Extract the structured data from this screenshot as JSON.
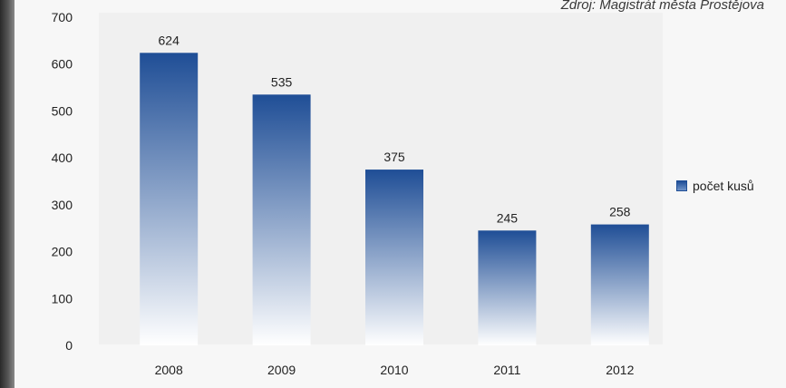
{
  "source_note": "Zdroj: Magistrát města Prostějova",
  "chart_data": {
    "type": "bar",
    "categories": [
      "2008",
      "2009",
      "2010",
      "2011",
      "2012"
    ],
    "series": [
      {
        "name": "počet kusů",
        "values": [
          624,
          535,
          375,
          245,
          258
        ]
      }
    ],
    "ylim": [
      0,
      700
    ],
    "yticks": [
      0,
      100,
      200,
      300,
      400,
      500,
      600,
      700
    ],
    "legend_position": "right",
    "grid": false,
    "colors": {
      "bar_top": "#1f4e96",
      "bar_bottom": "#ffffff"
    }
  }
}
